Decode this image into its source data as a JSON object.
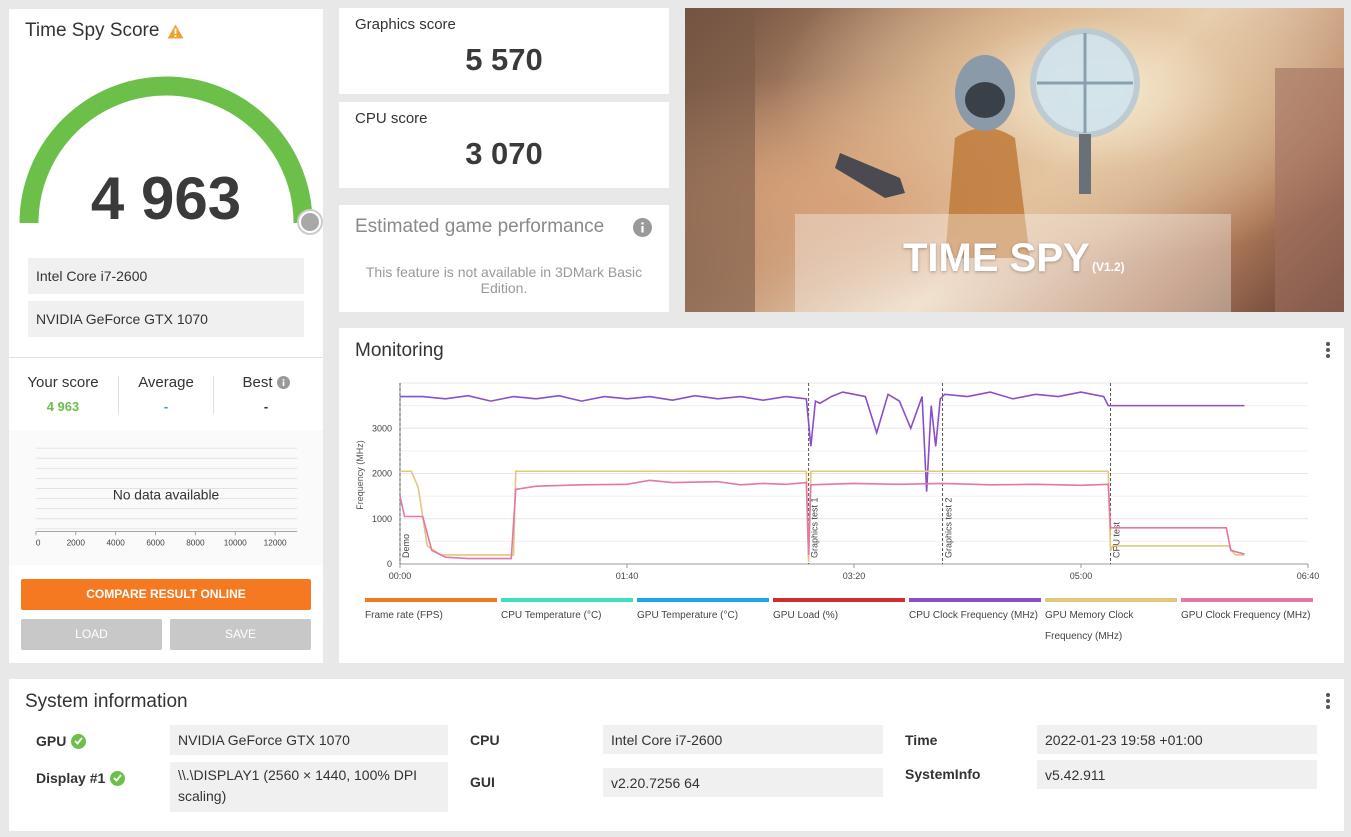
{
  "score_panel": {
    "title": "Time Spy Score",
    "score": "4 963",
    "hardware": [
      "Intel Core i7-2600",
      "NVIDIA GeForce GTX 1070"
    ],
    "gauge_fill": 0.85,
    "comparison": {
      "your_score_label": "Your score",
      "your_score_value": "4 963",
      "average_label": "Average",
      "average_value": "-",
      "best_label": "Best",
      "best_value": "-"
    },
    "histogram": {
      "no_data": "No data available",
      "x_ticks": [
        "0",
        "2000",
        "4000",
        "6000",
        "8000",
        "10000",
        "12000"
      ]
    },
    "compare_button": "COMPARE RESULT ONLINE",
    "load_button": "LOAD",
    "save_button": "SAVE"
  },
  "graphics_score": {
    "label": "Graphics score",
    "value": "5 570"
  },
  "cpu_score": {
    "label": "CPU score",
    "value": "3 070"
  },
  "estimated": {
    "title": "Estimated game performance",
    "message": "This feature is not available in 3DMark Basic Edition."
  },
  "hero": {
    "title": "TIME SPY",
    "version": "(V1.2)"
  },
  "monitoring": {
    "title": "Monitoring",
    "chart_data": {
      "type": "line",
      "ylabel": "Frequency (MHz)",
      "y_ticks": [
        "0",
        "1000",
        "2000",
        "3000"
      ],
      "x_ticks": [
        "00:00",
        "01:40",
        "03:20",
        "05:00",
        "06:40"
      ],
      "xlim_seconds": [
        0,
        400
      ],
      "ylim": [
        0,
        4000
      ],
      "markers": [
        {
          "t": 0,
          "label": "Demo"
        },
        {
          "t": 180,
          "label": "Graphics test 1"
        },
        {
          "t": 239,
          "label": "Graphics test 2"
        },
        {
          "t": 313,
          "label": "CPU test"
        }
      ],
      "series": [
        {
          "name": "CPU Clock Frequency (MHz)",
          "color": "#8a4fc8",
          "x": [
            0,
            10,
            20,
            30,
            40,
            50,
            60,
            70,
            80,
            90,
            100,
            110,
            120,
            130,
            140,
            150,
            160,
            170,
            179,
            181,
            183,
            185,
            190,
            195,
            200,
            205,
            210,
            215,
            220,
            225,
            230,
            232,
            234,
            236,
            238,
            240,
            250,
            260,
            270,
            280,
            290,
            300,
            310,
            312,
            320,
            330,
            340,
            350,
            360,
            370,
            372
          ],
          "y": [
            3700,
            3700,
            3650,
            3720,
            3600,
            3700,
            3650,
            3720,
            3600,
            3700,
            3650,
            3700,
            3620,
            3720,
            3650,
            3700,
            3620,
            3700,
            3650,
            2600,
            3600,
            3550,
            3700,
            3800,
            3750,
            3700,
            2900,
            3750,
            3600,
            3000,
            3700,
            1600,
            3500,
            2600,
            3650,
            3750,
            3700,
            3800,
            3650,
            3750,
            3700,
            3800,
            3700,
            3500,
            3500,
            3500,
            3500,
            3500,
            3500,
            3500,
            3500
          ]
        },
        {
          "name": "GPU Memory Clock Frequency (MHz)",
          "color": "#e3c77a",
          "x": [
            0,
            5,
            8,
            12,
            18,
            25,
            35,
            45,
            50,
            51,
            60,
            80,
            100,
            120,
            140,
            160,
            179,
            180,
            181,
            200,
            230,
            239,
            260,
            290,
            312,
            313,
            314,
            330,
            350,
            365,
            368,
            372
          ],
          "y": [
            2050,
            2050,
            1700,
            400,
            200,
            200,
            200,
            200,
            200,
            2050,
            2050,
            2050,
            2050,
            2050,
            2050,
            2050,
            2050,
            50,
            2050,
            2050,
            2050,
            2050,
            2050,
            2050,
            2050,
            300,
            400,
            400,
            400,
            400,
            200,
            200
          ]
        },
        {
          "name": "GPU Clock Frequency (MHz)",
          "color": "#e377a8",
          "x": [
            0,
            2,
            4,
            10,
            14,
            20,
            30,
            40,
            49,
            51,
            60,
            80,
            100,
            110,
            120,
            140,
            150,
            160,
            170,
            179,
            180,
            181,
            200,
            220,
            239,
            260,
            280,
            300,
            312,
            313,
            314,
            330,
            350,
            364,
            366,
            372
          ],
          "y": [
            1500,
            1050,
            1050,
            1050,
            300,
            150,
            120,
            120,
            120,
            1650,
            1720,
            1750,
            1760,
            1850,
            1800,
            1820,
            1750,
            1780,
            1760,
            1800,
            200,
            1750,
            1780,
            1760,
            1780,
            1750,
            1760,
            1740,
            1760,
            800,
            800,
            800,
            800,
            800,
            300,
            220
          ]
        }
      ]
    },
    "legend": [
      {
        "name": "Frame rate (FPS)",
        "color": "#f07a1e"
      },
      {
        "name": "CPU Temperature (°C)",
        "color": "#3ee0c0"
      },
      {
        "name": "GPU Temperature (°C)",
        "color": "#1ca7ec"
      },
      {
        "name": "GPU Load (%)",
        "color": "#d02c2c"
      },
      {
        "name": "CPU Clock Frequency (MHz)",
        "color": "#8a4fc8"
      },
      {
        "name": "GPU Memory Clock Frequency (MHz)",
        "color": "#e3c77a"
      },
      {
        "name": "GPU Clock Frequency (MHz)",
        "color": "#e377a8"
      }
    ]
  },
  "system_info": {
    "title": "System information",
    "gpu_label": "GPU",
    "gpu_value": "NVIDIA GeForce GTX 1070",
    "display_label": "Display #1",
    "display_value": "\\\\.\\DISPLAY1 (2560 × 1440, 100% DPI scaling)",
    "cpu_label": "CPU",
    "cpu_value": "Intel Core i7-2600",
    "gui_label": "GUI",
    "gui_value": "v2.20.7256 64",
    "time_label": "Time",
    "time_value": "2022-01-23 19:58 +01:00",
    "systeminfo_label": "SystemInfo",
    "systeminfo_value": "v5.42.911"
  },
  "colors": {
    "accent_orange": "#f47920",
    "score_green": "#6cc04a",
    "average_blue": "#2a9fd6",
    "warning": "#f0a030"
  }
}
